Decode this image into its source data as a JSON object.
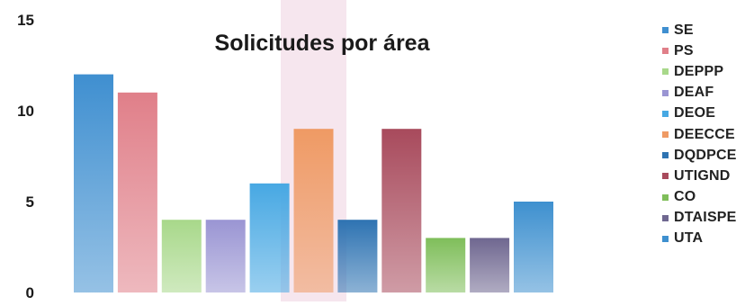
{
  "chart_data": {
    "type": "bar",
    "title": "Solicitudes por área",
    "categories": [
      "SE",
      "PS",
      "DEPPP",
      "DEAF",
      "DEOE",
      "DEECCE",
      "DQDPCE",
      "UTIGND",
      "CO",
      "DTAISPE",
      "UTA"
    ],
    "values": [
      12,
      11,
      4,
      4,
      6,
      9,
      4,
      9,
      3,
      3,
      5
    ],
    "colors": [
      "#3f8fd0",
      "#e07f89",
      "#a8d88a",
      "#9a95d3",
      "#47a8e3",
      "#ef9a64",
      "#2e73b2",
      "#a84a5c",
      "#7fbe5a",
      "#6f6790",
      "#3e90cf"
    ],
    "ylim": [
      0,
      15
    ],
    "yticks": [
      0,
      5,
      10,
      15
    ],
    "grid": false,
    "legend_position": "right"
  }
}
